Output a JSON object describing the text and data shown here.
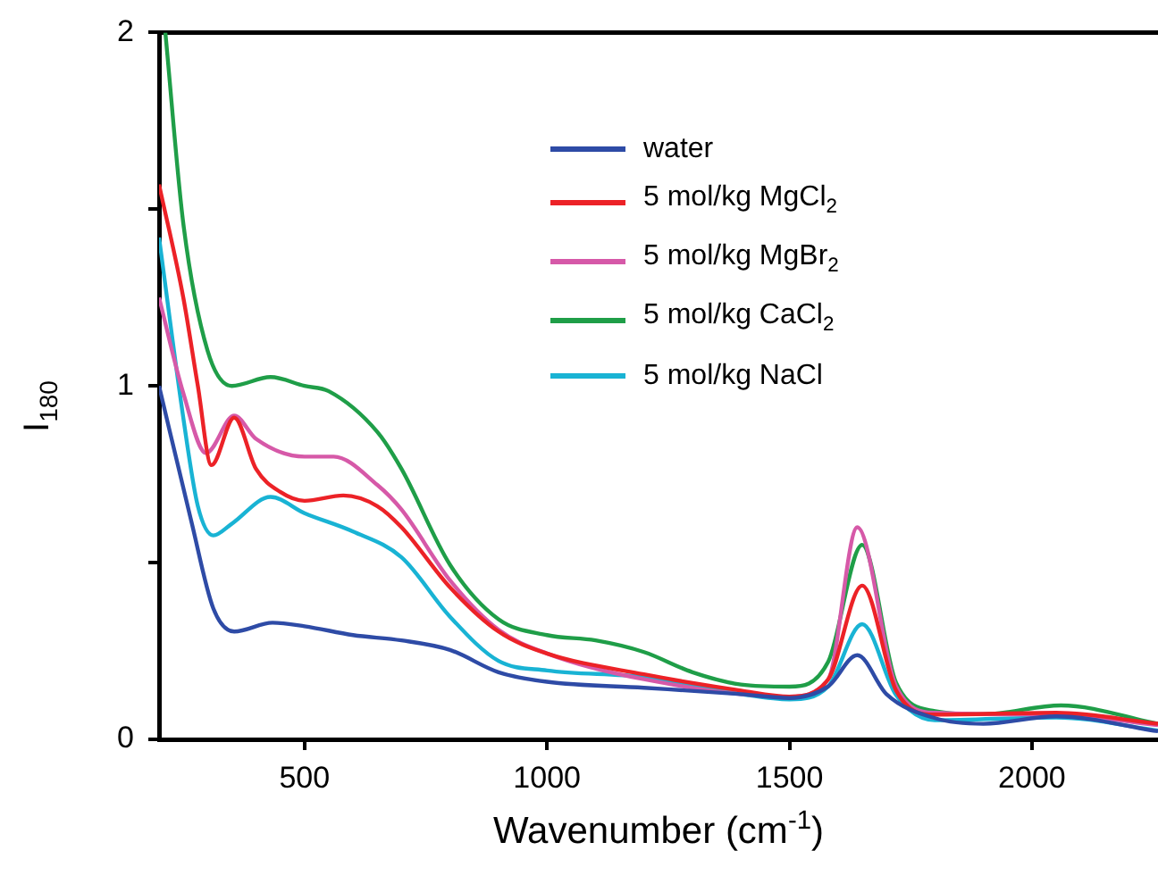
{
  "chart_data": {
    "type": "line",
    "xlabel": "Wavenumber (cm$^{-1}$)",
    "ylabel": "I$_{180}$",
    "xlim": [
      200,
      2260
    ],
    "xticks": [
      500,
      1000,
      1500,
      2000
    ],
    "ylim": [
      0,
      2
    ],
    "yticks": [
      0,
      {
        "value": 0.5,
        "label": null
      },
      1,
      {
        "value": 1.5,
        "label": null
      },
      2
    ],
    "grid": false,
    "legend": "top right",
    "marker": "none",
    "line_style": "solid",
    "series": [
      {
        "name": "water",
        "color": "#2e4ba6",
        "x": [
          200,
          266,
          312,
          355,
          434,
          500,
          600,
          700,
          800,
          900,
          1000,
          1200,
          1400,
          1500,
          1580,
          1640,
          1700,
          1800,
          1900,
          2050,
          2260
        ],
        "values": [
          1.0,
          0.62,
          0.37,
          0.305,
          0.33,
          0.32,
          0.295,
          0.28,
          0.253,
          0.19,
          0.163,
          0.146,
          0.128,
          0.117,
          0.15,
          0.238,
          0.128,
          0.06,
          0.044,
          0.065,
          0.023
        ]
      },
      {
        "name": "5 mol/kg MgCl$_{2}$",
        "color": "#ec2227",
        "x": [
          200,
          250,
          280,
          308,
          355,
          400,
          450,
          500,
          580,
          650,
          700,
          800,
          900,
          1000,
          1200,
          1400,
          1500,
          1580,
          1650,
          1720,
          1800,
          2050,
          2260
        ],
        "values": [
          1.57,
          1.25,
          1.0,
          0.776,
          0.91,
          0.765,
          0.7,
          0.675,
          0.69,
          0.66,
          0.6,
          0.43,
          0.305,
          0.243,
          0.184,
          0.138,
          0.121,
          0.17,
          0.435,
          0.138,
          0.07,
          0.075,
          0.044
        ]
      },
      {
        "name": "5 mol/kg MgBr$_{2}$",
        "color": "#d659a8",
        "x": [
          200,
          250,
          297,
          355,
          400,
          500,
          560,
          650,
          700,
          800,
          900,
          1000,
          1200,
          1500,
          1580,
          1640,
          1720,
          1800,
          2050,
          2260
        ],
        "values": [
          1.25,
          0.98,
          0.81,
          0.916,
          0.85,
          0.8,
          0.8,
          0.72,
          0.65,
          0.45,
          0.31,
          0.243,
          0.17,
          0.121,
          0.17,
          0.6,
          0.15,
          0.075,
          0.07,
          0.04
        ]
      },
      {
        "name": "5 mol/kg CaCl$_{2}$",
        "color": "#1f9e48",
        "x": [
          213,
          250,
          300,
          350,
          430,
          500,
          550,
          650,
          700,
          800,
          900,
          1000,
          1100,
          1200,
          1300,
          1400,
          1500,
          1580,
          1650,
          1720,
          1800,
          1900,
          2060,
          2260
        ],
        "values": [
          2.0,
          1.46,
          1.1,
          1.0,
          1.025,
          1.0,
          0.985,
          0.87,
          0.765,
          0.494,
          0.34,
          0.295,
          0.28,
          0.247,
          0.19,
          0.155,
          0.149,
          0.22,
          0.55,
          0.16,
          0.08,
          0.071,
          0.096,
          0.044
        ]
      },
      {
        "name": "5 mol/kg NaCl",
        "color": "#19b3d4",
        "x": [
          200,
          250,
          280,
          312,
          350,
          430,
          500,
          600,
          700,
          800,
          900,
          1000,
          1200,
          1400,
          1500,
          1580,
          1650,
          1720,
          1800,
          2050,
          2260
        ],
        "values": [
          1.42,
          0.91,
          0.66,
          0.577,
          0.61,
          0.686,
          0.64,
          0.588,
          0.515,
          0.347,
          0.222,
          0.195,
          0.176,
          0.128,
          0.113,
          0.15,
          0.326,
          0.125,
          0.054,
          0.062,
          0.025
        ]
      }
    ]
  }
}
